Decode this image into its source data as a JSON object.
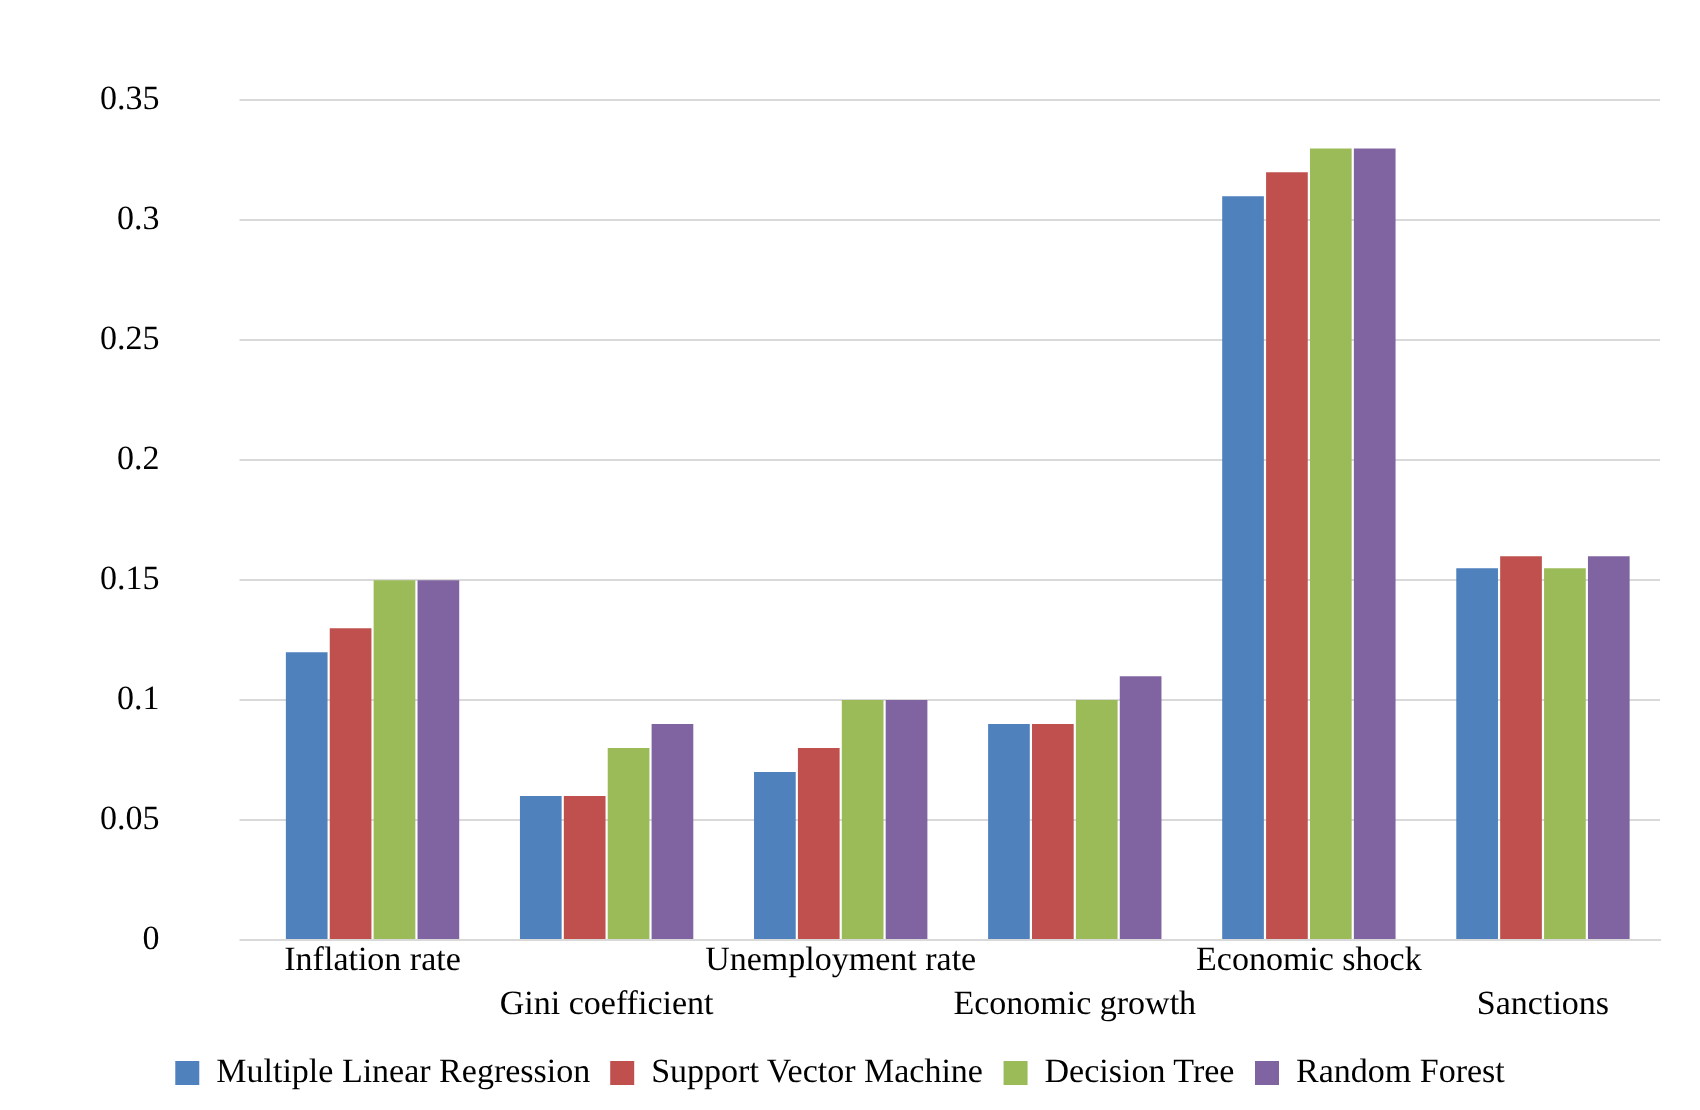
{
  "chart_data": {
    "type": "bar",
    "categories": [
      "Inflation rate",
      "Gini coefficient",
      "Unemployment rate",
      "Economic growth",
      "Economic shock",
      "Sanctions"
    ],
    "series": [
      {
        "name": "Multiple Linear Regression",
        "color": "#4f81bd",
        "values": [
          0.12,
          0.06,
          0.07,
          0.09,
          0.31,
          0.155
        ]
      },
      {
        "name": "Support Vector Machine",
        "color": "#c0504d",
        "values": [
          0.13,
          0.06,
          0.08,
          0.09,
          0.32,
          0.16
        ]
      },
      {
        "name": "Decision Tree",
        "color": "#9bbb59",
        "values": [
          0.15,
          0.08,
          0.1,
          0.1,
          0.33,
          0.155
        ]
      },
      {
        "name": "Random Forest",
        "color": "#8064a2",
        "values": [
          0.15,
          0.09,
          0.1,
          0.11,
          0.33,
          0.16
        ]
      }
    ],
    "ylim": [
      0,
      0.35
    ],
    "yticks": [
      0,
      0.05,
      0.1,
      0.15,
      0.2,
      0.25,
      0.3,
      0.35
    ],
    "grid": "y",
    "legend": "bottom"
  }
}
